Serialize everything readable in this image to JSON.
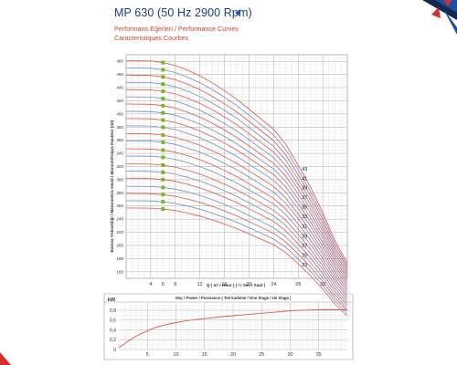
{
  "header": {
    "title": "MP 630 (50 Hz 2900 Rpm)",
    "subtitle_tr": "Performans Eğerleri / Performance Curves",
    "subtitle_fr": "Caracteristiques Courbes"
  },
  "colors": {
    "title": "#1b3f7a",
    "subtitle": "#d1402e",
    "curve_red": "#e0564a",
    "curve_blue": "#6f8fc8",
    "marker": "#7ab52a",
    "corner_red": "#d32f2f",
    "corner_blue": "#1f4fa0",
    "corner_navy": "#13294b"
  },
  "chart_data": [
    {
      "type": "line",
      "ylabel": "Basma Yüksekliği / Manometric Head / Manométrique Hauteur (mt)",
      "xlabel": "Q ( m³ / Hour ) ( l / Sec / Saat )",
      "x_ticks": [
        "4",
        "6",
        "8",
        "12",
        "16",
        "20",
        "24",
        "28",
        "32"
      ],
      "x_tick_values": [
        4,
        6,
        8,
        12,
        16,
        20,
        24,
        28,
        32
      ],
      "y_ticks": [
        "480",
        "460",
        "440",
        "420",
        "400",
        "380",
        "360",
        "340",
        "320",
        "300",
        "280",
        "260",
        "240",
        "220",
        "200",
        "180",
        "160"
      ],
      "y_tick_values": [
        480,
        460,
        440,
        420,
        400,
        380,
        360,
        340,
        320,
        300,
        280,
        260,
        240,
        220,
        200,
        180,
        160
      ],
      "xlim": [
        0,
        36
      ],
      "ylim": [
        150,
        490
      ],
      "marker_x": 6,
      "stage_labels": [
        "43",
        "41",
        "39",
        "37",
        "35",
        "33",
        "31",
        "29",
        "27",
        "25",
        "23"
      ],
      "curve_shape": {
        "q": [
          0,
          4,
          6,
          8,
          10,
          12,
          14,
          16,
          18,
          20,
          22,
          24,
          26,
          28,
          30,
          32,
          34,
          36
        ],
        "relative_head": [
          1.0,
          0.999,
          0.994,
          0.985,
          0.97,
          0.952,
          0.93,
          0.905,
          0.878,
          0.847,
          0.815,
          0.783,
          0.735,
          0.67,
          0.6,
          0.52,
          0.43,
          0.36
        ]
      },
      "series": [
        {
          "stages": 43,
          "shutoff_head": 481,
          "color": "red"
        },
        {
          "stages": 42,
          "shutoff_head": 470,
          "color": "blue"
        },
        {
          "stages": 41,
          "shutoff_head": 459,
          "color": "red"
        },
        {
          "stages": 40,
          "shutoff_head": 448,
          "color": "blue"
        },
        {
          "stages": 39,
          "shutoff_head": 437,
          "color": "red"
        },
        {
          "stages": 38,
          "shutoff_head": 426,
          "color": "blue"
        },
        {
          "stages": 37,
          "shutoff_head": 415,
          "color": "red"
        },
        {
          "stages": 36,
          "shutoff_head": 404,
          "color": "blue"
        },
        {
          "stages": 35,
          "shutoff_head": 393,
          "color": "red"
        },
        {
          "stages": 34,
          "shutoff_head": 382,
          "color": "blue"
        },
        {
          "stages": 33,
          "shutoff_head": 370,
          "color": "red"
        },
        {
          "stages": 32,
          "shutoff_head": 359,
          "color": "blue"
        },
        {
          "stages": 31,
          "shutoff_head": 347,
          "color": "red"
        },
        {
          "stages": 30,
          "shutoff_head": 336,
          "color": "blue"
        },
        {
          "stages": 29,
          "shutoff_head": 324,
          "color": "red"
        },
        {
          "stages": 28,
          "shutoff_head": 313,
          "color": "blue"
        },
        {
          "stages": 27,
          "shutoff_head": 302,
          "color": "red"
        },
        {
          "stages": 26,
          "shutoff_head": 290,
          "color": "blue"
        },
        {
          "stages": 25,
          "shutoff_head": 279,
          "color": "red"
        },
        {
          "stages": 24,
          "shutoff_head": 268,
          "color": "blue"
        },
        {
          "stages": 23,
          "shutoff_head": 257,
          "color": "red"
        }
      ]
    },
    {
      "type": "line",
      "title": "Güç / Power / Puissance ( Tek kademe / One Stage / Un étage )",
      "ylabel": "kW",
      "x_ticks": [
        "5",
        "10",
        "15",
        "20",
        "25",
        "30",
        "35"
      ],
      "x_tick_values": [
        5,
        10,
        15,
        20,
        25,
        30,
        35
      ],
      "y_ticks": [
        "0,8",
        "0,6",
        "0,4",
        "0,2",
        "0"
      ],
      "y_tick_values": [
        0.8,
        0.6,
        0.4,
        0.2,
        0
      ],
      "xlim": [
        0,
        40
      ],
      "ylim": [
        0,
        0.95
      ],
      "series": [
        {
          "x": [
            0,
            1,
            2,
            3,
            4,
            5,
            6,
            7,
            8,
            10,
            12,
            15,
            18,
            20,
            22,
            25,
            28,
            30,
            32,
            35,
            38,
            40
          ],
          "y": [
            0.04,
            0.12,
            0.2,
            0.27,
            0.33,
            0.38,
            0.43,
            0.47,
            0.5,
            0.55,
            0.59,
            0.63,
            0.67,
            0.69,
            0.71,
            0.74,
            0.77,
            0.79,
            0.8,
            0.81,
            0.81,
            0.81
          ]
        }
      ]
    }
  ]
}
